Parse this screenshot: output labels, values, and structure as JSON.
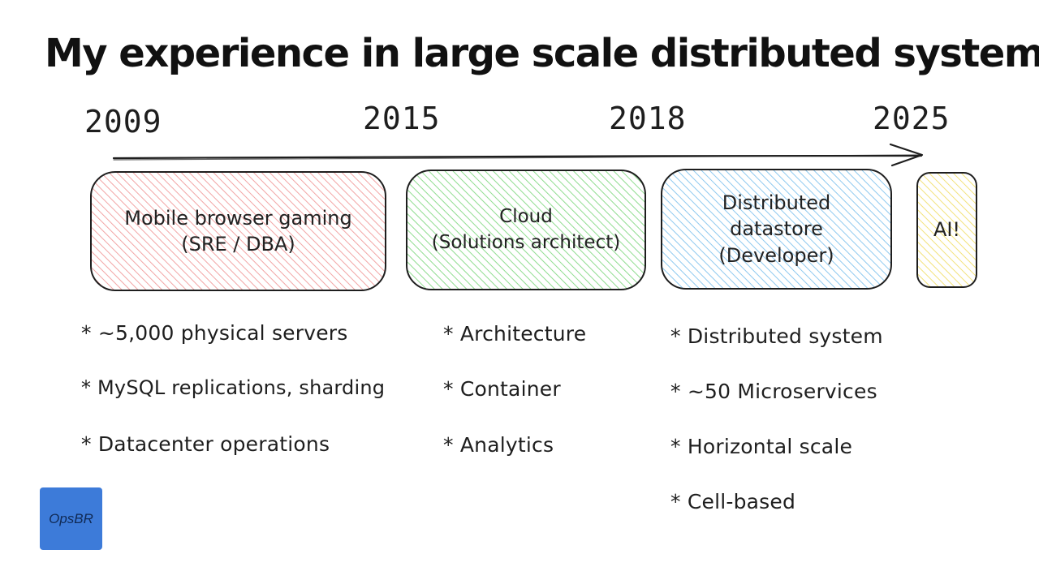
{
  "title": "My experience in large scale distributed systems",
  "timeline": {
    "years": [
      "2009",
      "2015",
      "2018",
      "2025"
    ]
  },
  "phases": [
    {
      "label": "Mobile browser gaming\n(SRE / DBA)",
      "color": "#f2a5a5",
      "bullets": [
        "* ~5,000 physical servers",
        "* MySQL replications, sharding",
        "* Datacenter operations"
      ]
    },
    {
      "label": "Cloud\n(Solutions architect)",
      "color": "#8fdc8f",
      "bullets": [
        "* Architecture",
        "* Container",
        "* Analytics"
      ]
    },
    {
      "label": "Distributed\ndatastore\n(Developer)",
      "color": "#8ec9ef",
      "bullets": [
        "* Distributed system",
        "* ~50 Microservices",
        "* Horizontal scale",
        "* Cell-based"
      ]
    },
    {
      "label": "AI!",
      "color": "#f3e27a",
      "bullets": []
    }
  ],
  "logo": {
    "text": "OpsBR",
    "color": "#3d7bd9"
  }
}
